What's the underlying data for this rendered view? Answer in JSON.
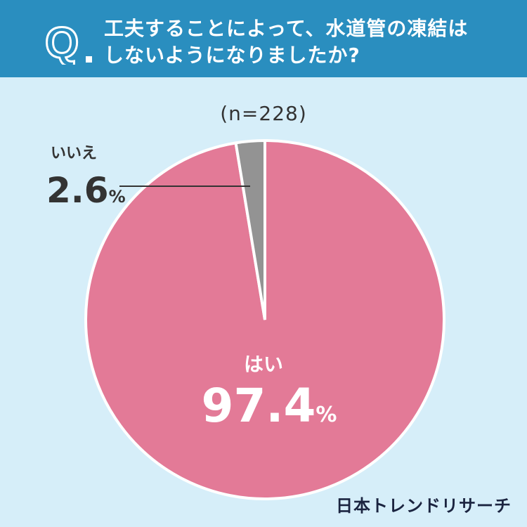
{
  "question": {
    "mark": "Q",
    "title_line1": "工夫することによって、水道管の凍結は",
    "title_line2": "しないようになりましたか?"
  },
  "sample_size": "(n=228)",
  "chart_data": {
    "type": "pie",
    "slices": [
      {
        "label": "はい",
        "value": 97.4,
        "display": "97.4",
        "color": "#e37a97"
      },
      {
        "label": "いいえ",
        "value": 2.6,
        "display": "2.6",
        "color": "#939393"
      }
    ],
    "unit": "%"
  },
  "brand": "日本トレンドリサーチ",
  "colors": {
    "header": "#2a8ebf",
    "background": "#d6eef9",
    "yes": "#e37a97",
    "no": "#939393"
  }
}
